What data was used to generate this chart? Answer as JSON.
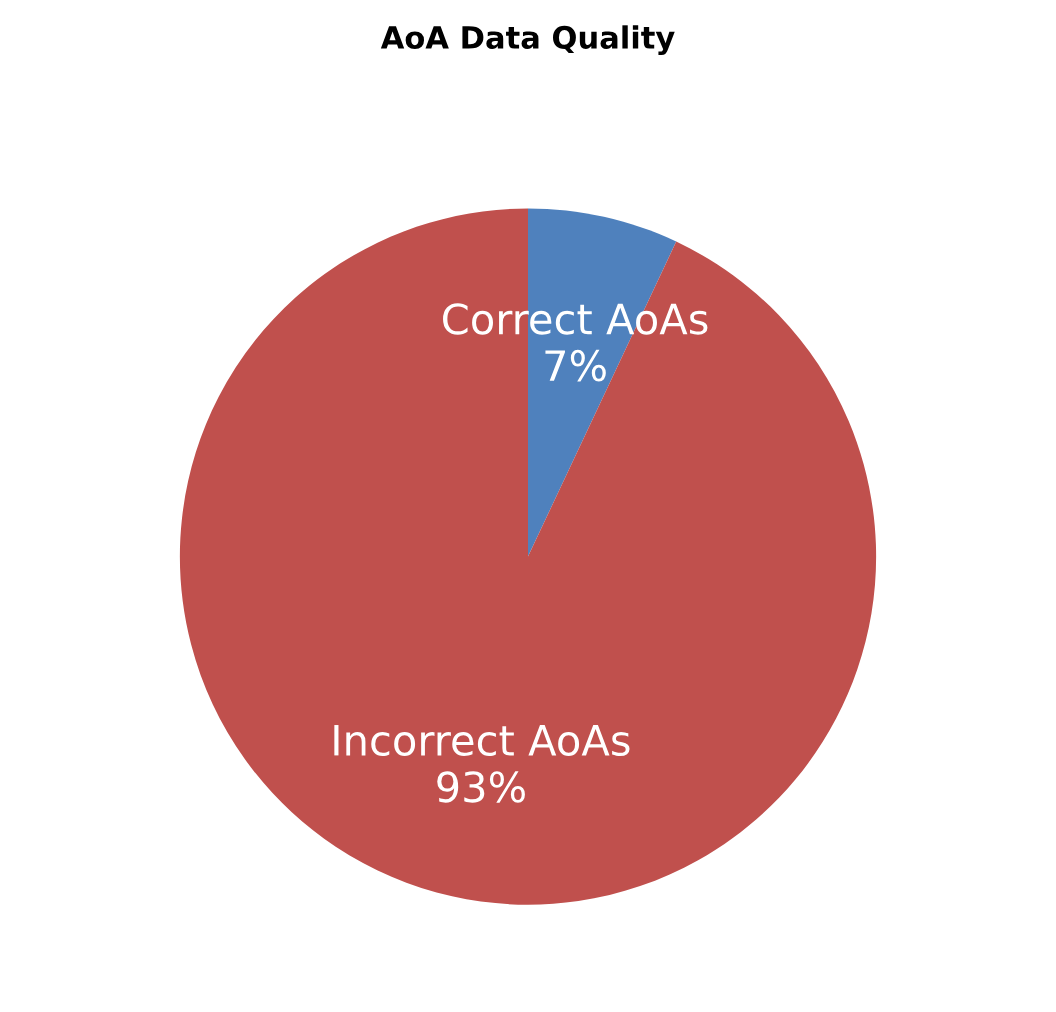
{
  "chart_data": {
    "type": "pie",
    "title": "AoA Data Quality",
    "categories": [
      "Correct AoAs",
      "Incorrect AoAs"
    ],
    "values": [
      7,
      93
    ],
    "colors": [
      "#4f81bd",
      "#c0504d"
    ],
    "value_labels": [
      "7%",
      "93%"
    ],
    "legend": false
  }
}
